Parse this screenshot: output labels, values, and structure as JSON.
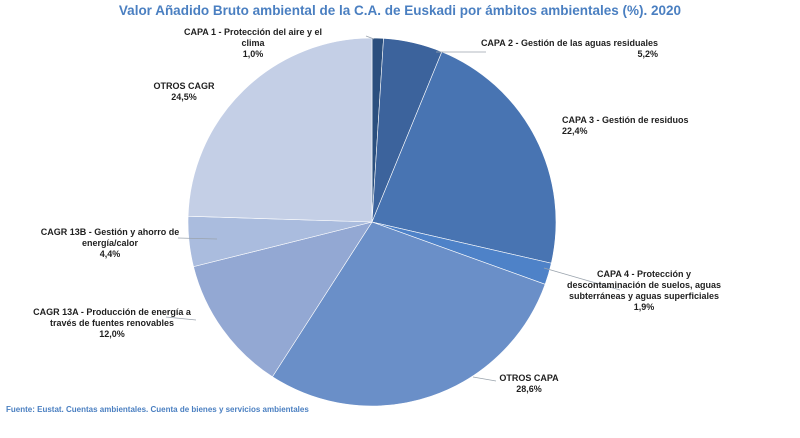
{
  "chart_data": {
    "type": "pie",
    "title": "Valor Añadido Bruto ambiental de la C.A. de Euskadi por ámbitos ambientales (%). 2020",
    "source": "Fuente: Eustat. Cuentas ambientales. Cuenta de bienes y servicios ambientales",
    "slices": [
      {
        "label": "CAPA 1 - Protección del aire y el clima",
        "value": 1.0,
        "value_text": "1,0%",
        "color": "#2b4f7e"
      },
      {
        "label": "CAPA 2 - Gestión de las aguas residuales",
        "value": 5.2,
        "value_text": "5,2%",
        "color": "#3c639c"
      },
      {
        "label": "CAPA 3 - Gestión de residuos",
        "value": 22.4,
        "value_text": "22,4%",
        "color": "#4874b2"
      },
      {
        "label": "CAPA 4 - Protección y descontaminación de suelos, aguas subterráneas y aguas superficiales",
        "value": 1.9,
        "value_text": "1,9%",
        "color": "#4e82c8"
      },
      {
        "label": "OTROS CAPA",
        "value": 28.6,
        "value_text": "28,6%",
        "color": "#6a8fc8"
      },
      {
        "label": "CAGR 13A - Producción de energía a través de fuentes renovables",
        "value": 12.0,
        "value_text": "12,0%",
        "color": "#93a8d3"
      },
      {
        "label": "CAGR 13B - Gestión y ahorro de energía/calor",
        "value": 4.4,
        "value_text": "4,4%",
        "color": "#aabcde"
      },
      {
        "label": "OTROS CAGR",
        "value": 24.5,
        "value_text": "24,5%",
        "color": "#c4cfe6"
      }
    ]
  }
}
